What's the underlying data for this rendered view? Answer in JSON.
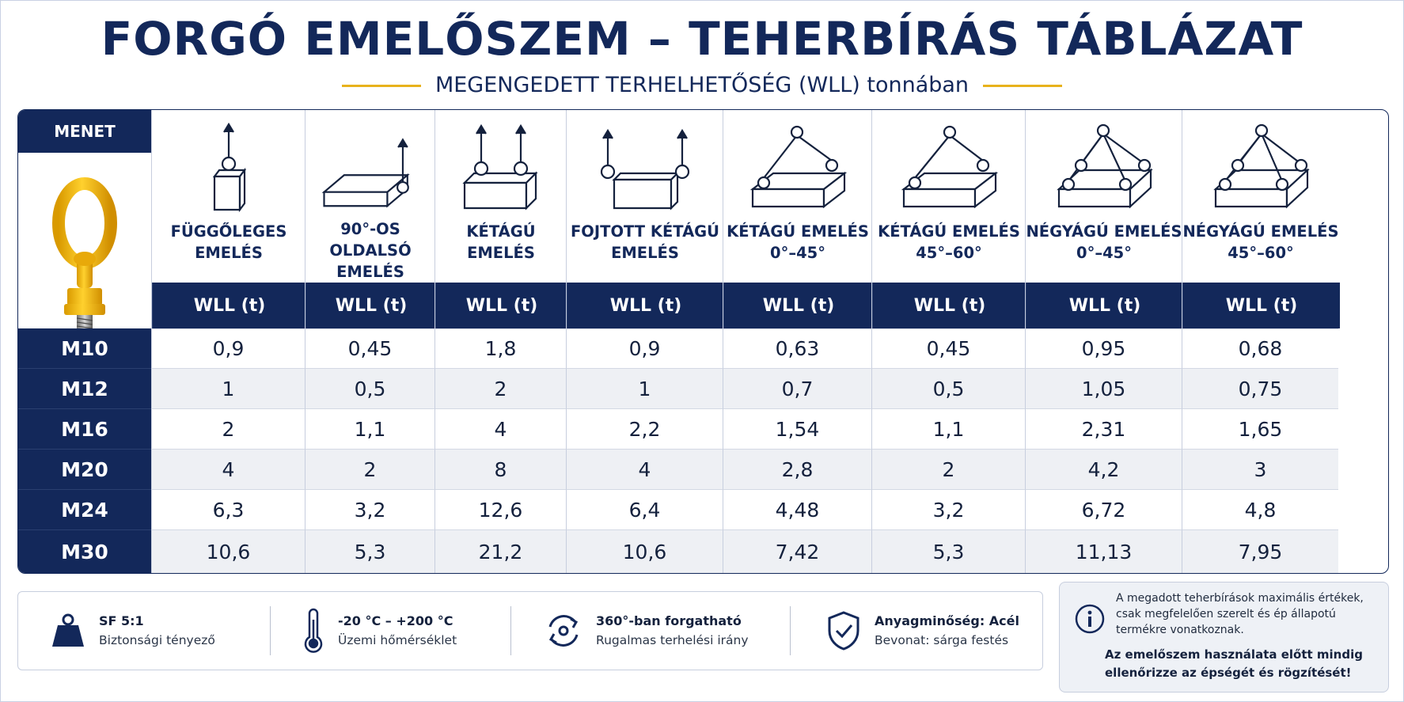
{
  "header": {
    "title": "FORGÓ EMELŐSZEM – TEHERBÍRÁS TÁBLÁZAT",
    "subtitle": "MEGENGEDETT TERHELHETŐSÉG (WLL) tonnában",
    "accent_color": "#e8b21c",
    "navy_color": "#13285a"
  },
  "table": {
    "menet_label": "MENET",
    "product_image": "yellow-swivel-eyebolt",
    "wll_label": "WLL (t)",
    "columns": [
      {
        "line1": "FÜGGŐLEGES",
        "line2": "EMELÉS",
        "icon": "vertical-lift-icon"
      },
      {
        "line1": "90°-OS OLDALSÓ",
        "line2": "EMELÉS",
        "icon": "side-lift-icon"
      },
      {
        "line1": "KÉTÁGÚ",
        "line2": "EMELÉS",
        "icon": "two-leg-lift-icon"
      },
      {
        "line1": "FOJTOTT KÉTÁGÚ",
        "line2": "EMELÉS",
        "icon": "choked-two-leg-lift-icon"
      },
      {
        "line1": "KÉTÁGÚ EMELÉS",
        "line2": "0°–45°",
        "icon": "two-leg-sling-0-45-icon"
      },
      {
        "line1": "KÉTÁGÚ EMELÉS",
        "line2": "45°–60°",
        "icon": "two-leg-sling-45-60-icon"
      },
      {
        "line1": "NÉGYÁGÚ EMELÉS",
        "line2": "0°–45°",
        "icon": "four-leg-sling-0-45-icon"
      },
      {
        "line1": "NÉGYÁGÚ EMELÉS",
        "line2": "45°–60°",
        "icon": "four-leg-sling-45-60-icon"
      }
    ],
    "rows": [
      {
        "thread": "M10",
        "values": [
          "0,9",
          "0,45",
          "1,8",
          "0,9",
          "0,63",
          "0,45",
          "0,95",
          "0,68"
        ]
      },
      {
        "thread": "M12",
        "values": [
          "1",
          "0,5",
          "2",
          "1",
          "0,7",
          "0,5",
          "1,05",
          "0,75"
        ]
      },
      {
        "thread": "M16",
        "values": [
          "2",
          "1,1",
          "4",
          "2,2",
          "1,54",
          "1,1",
          "2,31",
          "1,65"
        ]
      },
      {
        "thread": "M20",
        "values": [
          "4",
          "2",
          "8",
          "4",
          "2,8",
          "2",
          "4,2",
          "3"
        ]
      },
      {
        "thread": "M24",
        "values": [
          "6,3",
          "3,2",
          "12,6",
          "6,4",
          "4,48",
          "3,2",
          "6,72",
          "4,8"
        ]
      },
      {
        "thread": "M30",
        "values": [
          "10,6",
          "5,3",
          "21,2",
          "10,6",
          "7,42",
          "5,3",
          "11,13",
          "7,95"
        ]
      }
    ]
  },
  "info": [
    {
      "icon": "weight-icon",
      "bold": "SF 5:1",
      "sub": "Biztonsági tényező"
    },
    {
      "icon": "thermometer-icon",
      "bold": "-20 °C – +200 °C",
      "sub": "Üzemi hőmérséklet"
    },
    {
      "icon": "rotate-360-icon",
      "bold": "360°-ban forgatható",
      "sub": "Rugalmas terhelési irány"
    },
    {
      "icon": "shield-check-icon",
      "bold": "Anyagminőség: Acél",
      "sub": "Bevonat: sárga festés"
    }
  ],
  "note": {
    "icon": "info-icon",
    "line1": "A megadott teherbírások maximális értékek,",
    "line2": "csak megfelelően szerelt és ép állapotú",
    "line3": "termékre vonatkoznak.",
    "bold1": "Az emelőszem használata előtt mindig",
    "bold2": "ellenőrizze az épségét és rögzítését!"
  }
}
